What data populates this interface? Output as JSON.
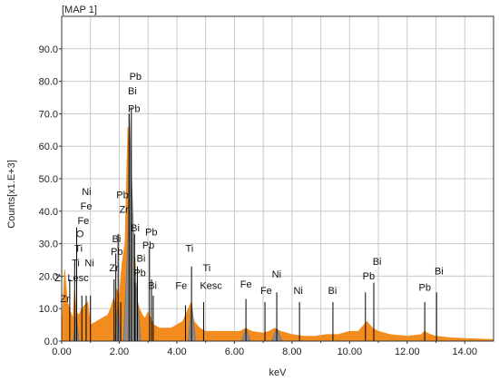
{
  "chart_data": {
    "type": "area",
    "title": "[MAP 1]",
    "xlabel": "keV",
    "ylabel": "Counts[x1.E+3]",
    "xlim": [
      0,
      15
    ],
    "ylim": [
      0,
      100
    ],
    "grid": true,
    "x_ticks": [
      "0.00",
      "2.00",
      "4.00",
      "6.00",
      "8.00",
      "10.00",
      "12.00",
      "14.00"
    ],
    "y_ticks": [
      "0.0",
      "10.0",
      "20.0",
      "30.0",
      "40.0",
      "50.0",
      "60.0",
      "70.0",
      "80.0",
      "90.0"
    ],
    "colors": {
      "spectrum": "#f28c1e",
      "highlight": "#8c8c8c",
      "grid": "#c8c8c8",
      "marker": "#000000"
    },
    "spectrum": {
      "x": [
        0.0,
        0.1,
        0.2,
        0.3,
        0.4,
        0.45,
        0.5,
        0.6,
        0.7,
        0.8,
        0.9,
        1.0,
        1.2,
        1.4,
        1.6,
        1.7,
        1.8,
        1.85,
        1.9,
        2.0,
        2.1,
        2.2,
        2.25,
        2.3,
        2.35,
        2.4,
        2.45,
        2.5,
        2.55,
        2.6,
        2.7,
        2.8,
        2.9,
        3.0,
        3.2,
        3.4,
        3.6,
        3.8,
        4.0,
        4.2,
        4.4,
        4.5,
        4.55,
        4.6,
        4.7,
        4.8,
        5.0,
        5.4,
        5.8,
        6.2,
        6.4,
        6.6,
        7.0,
        7.2,
        7.4,
        7.6,
        8.0,
        8.4,
        8.8,
        9.2,
        9.6,
        10.0,
        10.3,
        10.5,
        10.6,
        10.8,
        11.0,
        11.4,
        12.0,
        12.5,
        12.6,
        12.8,
        13.0,
        13.5,
        14.0,
        15.0
      ],
      "y": [
        1,
        22,
        12,
        9,
        7,
        16,
        9,
        8,
        10,
        11,
        12,
        5,
        6,
        7,
        8,
        10,
        13,
        11,
        16,
        14,
        24,
        30,
        48,
        66,
        58,
        36,
        30,
        20,
        26,
        13,
        10,
        8,
        7,
        9,
        5,
        4,
        4,
        4,
        5,
        6,
        10,
        12,
        8,
        6,
        5,
        4,
        3,
        3,
        3,
        3,
        4,
        3,
        2.5,
        3,
        4,
        3,
        2,
        1.5,
        1.5,
        2,
        2,
        3,
        3,
        5,
        6,
        4,
        3,
        2,
        1.5,
        2,
        3,
        2,
        1.5,
        1,
        0.8,
        0.5
      ]
    },
    "highlight_regions": [
      {
        "element": "Ti",
        "x": [
          0.4,
          0.5,
          0.6
        ],
        "y": [
          0,
          8,
          0
        ]
      },
      {
        "element": "Zr",
        "x": [
          1.85,
          1.95,
          2.05
        ],
        "y": [
          0,
          12,
          0
        ]
      },
      {
        "element": "Pb",
        "x": [
          2.15,
          2.3,
          2.35,
          2.42,
          2.55,
          2.75
        ],
        "y": [
          0,
          32,
          70,
          52,
          22,
          0
        ]
      },
      {
        "element": "Ti",
        "x": [
          4.4,
          4.51,
          4.65
        ],
        "y": [
          0,
          12,
          0
        ]
      },
      {
        "element": "Fe",
        "x": [
          6.25,
          6.4,
          6.55
        ],
        "y": [
          0,
          4,
          0
        ]
      },
      {
        "element": "Ni",
        "x": [
          7.3,
          7.47,
          7.65
        ],
        "y": [
          0,
          4,
          0
        ]
      }
    ],
    "markers": [
      {
        "x": 0.28,
        "top": 19
      },
      {
        "x": 0.45,
        "top": 24
      },
      {
        "x": 0.52,
        "top": 35
      },
      {
        "x": 0.7,
        "top": 14
      },
      {
        "x": 0.85,
        "top": 14
      },
      {
        "x": 1.0,
        "top": 14
      },
      {
        "x": 1.82,
        "top": 19
      },
      {
        "x": 1.88,
        "top": 27
      },
      {
        "x": 1.96,
        "top": 33
      },
      {
        "x": 2.05,
        "top": 12
      },
      {
        "x": 2.34,
        "top": 70
      },
      {
        "x": 2.42,
        "top": 72
      },
      {
        "x": 2.53,
        "top": 33
      },
      {
        "x": 2.55,
        "top": 18
      },
      {
        "x": 2.63,
        "top": 23
      },
      {
        "x": 3.05,
        "top": 29
      },
      {
        "x": 3.12,
        "top": 19
      },
      {
        "x": 3.18,
        "top": 14
      },
      {
        "x": 4.3,
        "top": 11
      },
      {
        "x": 4.51,
        "top": 23
      },
      {
        "x": 4.93,
        "top": 12
      },
      {
        "x": 6.4,
        "top": 13
      },
      {
        "x": 7.06,
        "top": 12
      },
      {
        "x": 7.47,
        "top": 15
      },
      {
        "x": 8.26,
        "top": 12
      },
      {
        "x": 9.42,
        "top": 12
      },
      {
        "x": 10.55,
        "top": 15
      },
      {
        "x": 10.84,
        "top": 18
      },
      {
        "x": 12.61,
        "top": 12
      },
      {
        "x": 13.02,
        "top": 15
      }
    ],
    "annotations": [
      {
        "text": "Pb",
        "x": 2.35,
        "y": 80.5
      },
      {
        "text": "Bi",
        "x": 2.3,
        "y": 76.0
      },
      {
        "text": "Pb",
        "x": 2.3,
        "y": 70.5
      },
      {
        "text": "Ni",
        "x": 0.7,
        "y": 45.0
      },
      {
        "text": "Fe",
        "x": 0.65,
        "y": 40.5
      },
      {
        "text": "Zr",
        "x": 2.0,
        "y": 39.5
      },
      {
        "text": "O",
        "x": 0.5,
        "y": 32.0
      },
      {
        "text": "Pb",
        "x": 1.9,
        "y": 44.0
      },
      {
        "text": "Fe",
        "x": 0.55,
        "y": 36.0
      },
      {
        "text": "Bi",
        "x": 2.4,
        "y": 33.8
      },
      {
        "text": "Pb",
        "x": 2.9,
        "y": 32.5
      },
      {
        "text": "Ti",
        "x": 0.45,
        "y": 27.5
      },
      {
        "text": "Bi",
        "x": 1.75,
        "y": 30.5
      },
      {
        "text": "Pb",
        "x": 2.8,
        "y": 28.5
      },
      {
        "text": "Ti",
        "x": 4.3,
        "y": 27.5
      },
      {
        "text": "Ti",
        "x": 0.35,
        "y": 23.0
      },
      {
        "text": "Ni",
        "x": 0.8,
        "y": 23.0
      },
      {
        "text": "Pb",
        "x": 1.7,
        "y": 26.5
      },
      {
        "text": "Zr",
        "x": 1.65,
        "y": 21.5
      },
      {
        "text": "Bi",
        "x": 2.6,
        "y": 24.5
      },
      {
        "text": "Pb",
        "x": 2.5,
        "y": 20.0
      },
      {
        "text": "Ti",
        "x": 4.9,
        "y": 21.5
      },
      {
        "text": "Zr",
        "x": -0.25,
        "y": 18.5
      },
      {
        "text": "Lesc",
        "x": 0.2,
        "y": 18.5
      },
      {
        "text": "Ni",
        "x": 7.3,
        "y": 19.5
      },
      {
        "text": "Bi",
        "x": 10.8,
        "y": 23.5
      },
      {
        "text": "Pb",
        "x": 10.45,
        "y": 19.0
      },
      {
        "text": "Bi",
        "x": 12.95,
        "y": 20.5
      },
      {
        "text": "Bi",
        "x": 3.0,
        "y": 16.0
      },
      {
        "text": "Fe",
        "x": 3.95,
        "y": 16.0
      },
      {
        "text": "Kesc",
        "x": 4.8,
        "y": 16.0
      },
      {
        "text": "Fe",
        "x": 6.2,
        "y": 16.5
      },
      {
        "text": "Fe",
        "x": 6.9,
        "y": 14.5
      },
      {
        "text": "Ni",
        "x": 8.05,
        "y": 14.5
      },
      {
        "text": "Bi",
        "x": 9.25,
        "y": 14.5
      },
      {
        "text": "Pb",
        "x": 12.4,
        "y": 15.5
      },
      {
        "text": "Zr",
        "x": -0.05,
        "y": 12.0
      }
    ]
  }
}
